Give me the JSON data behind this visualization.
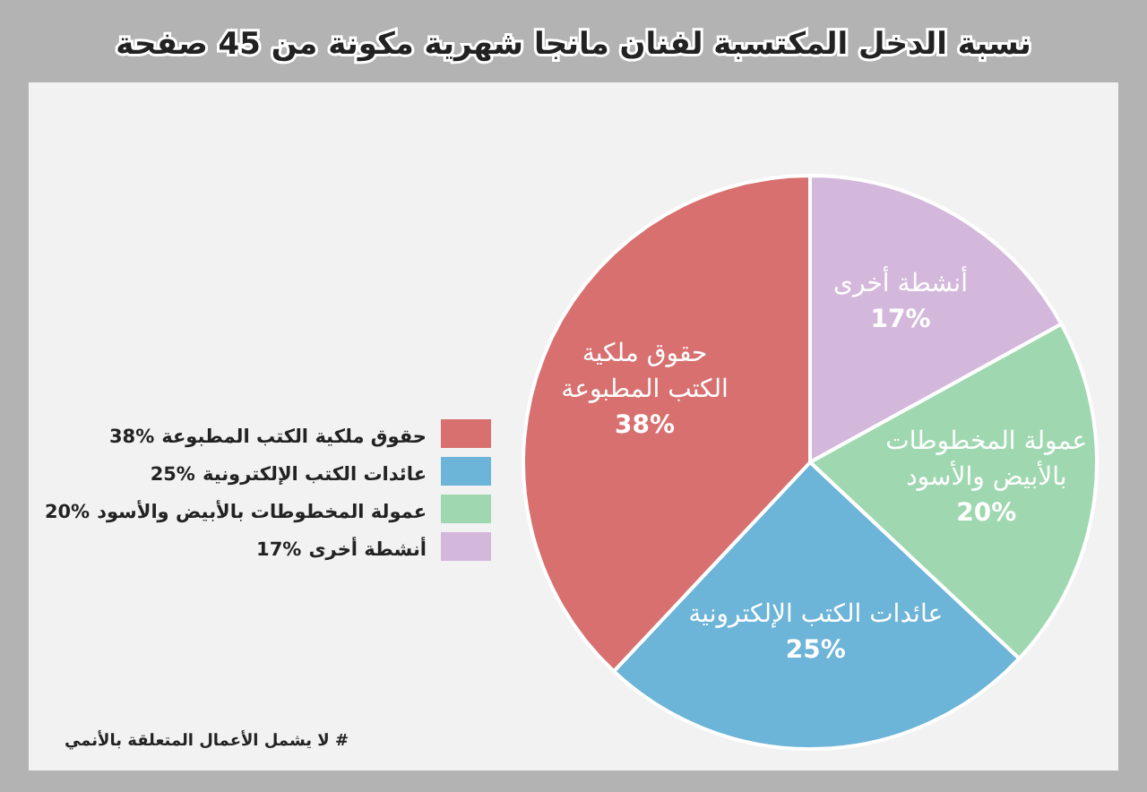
{
  "chart_data": {
    "type": "pie",
    "title": "نسبة الدخل المكتسبة لفنان مانجا شهرية مكونة من 45 صفحة",
    "categories": [
      "أنشطة أخرى",
      "عمولة المخطوطات بالأبيض والأسود",
      "عائدات الكتب الإلكترونية",
      "حقوق ملكية الكتب المطبوعة"
    ],
    "values": [
      17,
      20,
      25,
      38
    ],
    "value_labels": [
      "17%",
      "20%",
      "25%",
      "38%"
    ],
    "colors": [
      "#d4b8dc",
      "#9fd8b0",
      "#6cb4d8",
      "#d87070"
    ],
    "legend": "left",
    "annotations": [
      "# لا يشمل الأعمال المتعلقة بالأنمي"
    ]
  }
}
